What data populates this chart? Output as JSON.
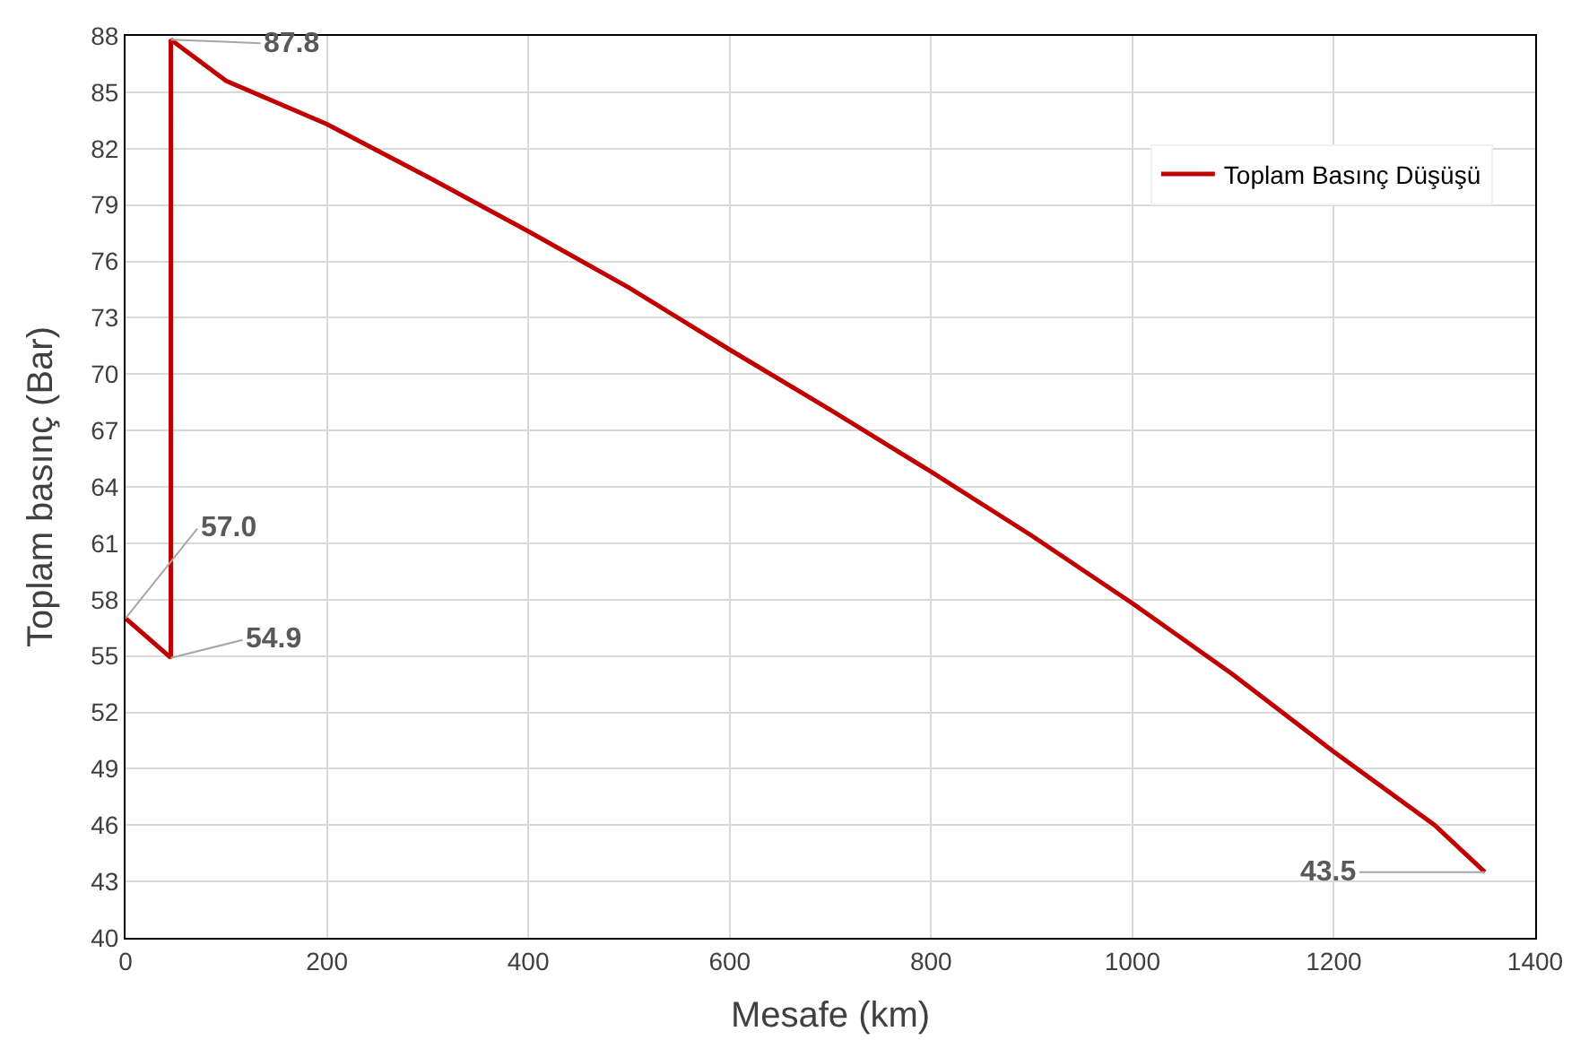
{
  "chart_data": {
    "type": "line",
    "xlabel": "Mesafe (km)",
    "ylabel": "Toplam basınç (Bar)",
    "series": [
      {
        "name": "Toplam Basınç Düşüşü",
        "color": "#c00000",
        "x": [
          0,
          45,
          45,
          100,
          200,
          300,
          400,
          500,
          600,
          700,
          800,
          900,
          1000,
          1100,
          1200,
          1300,
          1350
        ],
        "values": [
          57.0,
          54.9,
          87.8,
          85.6,
          83.3,
          80.5,
          77.6,
          74.6,
          71.3,
          68.1,
          64.8,
          61.4,
          57.8,
          54.0,
          49.9,
          46.0,
          43.5
        ]
      }
    ],
    "annotations": [
      {
        "text": "87.8",
        "x": 45,
        "y": 87.8
      },
      {
        "text": "54.9",
        "x": 45,
        "y": 54.9
      },
      {
        "text": "57.0",
        "x": 0,
        "y": 57.0
      },
      {
        "text": "43.5",
        "x": 1350,
        "y": 43.5
      }
    ],
    "xlim": [
      0,
      1400
    ],
    "xticks": [
      0,
      200,
      400,
      600,
      800,
      1000,
      1200,
      1400
    ],
    "ylim": [
      40,
      88
    ],
    "yticks": [
      40,
      43,
      46,
      49,
      52,
      55,
      58,
      61,
      64,
      67,
      70,
      73,
      76,
      79,
      82,
      85,
      88
    ],
    "grid": true,
    "legend": "top right",
    "marker": "none",
    "line_style": "solid"
  }
}
